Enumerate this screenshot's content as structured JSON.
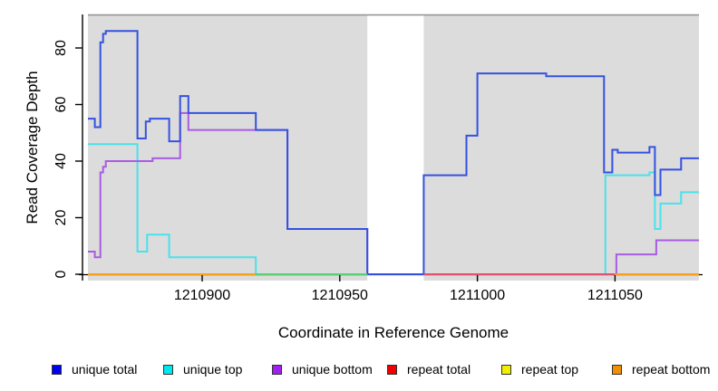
{
  "chart_data": {
    "type": "line",
    "subtype": "step-coverage-plot",
    "title": "",
    "xlabel": "Coordinate in Reference Genome",
    "ylabel": "Read Coverage Depth",
    "xlim": [
      1210858.5,
      1211080.5
    ],
    "ylim": [
      -2,
      92
    ],
    "x_ticks": [
      1210900,
      1210950,
      1211000,
      1211050
    ],
    "x_tick_labels": [
      "1210900",
      "1210950",
      "1211000",
      "1211050"
    ],
    "y_ticks": [
      0,
      20,
      40,
      60,
      80
    ],
    "y_tick_labels": [
      "0",
      "20",
      "40",
      "60",
      "80"
    ],
    "grid": false,
    "legend_position": "bottom",
    "background_regions": [
      {
        "from": 1210858.5,
        "to": 1210960.0,
        "color": "#dcdcdc"
      },
      {
        "from": 1210980.5,
        "to": 1211080.5,
        "color": "#dcdcdc"
      }
    ],
    "gap_region": {
      "from": 1210960.0,
      "to": 1210980.5,
      "color": "#ffffff"
    },
    "series": [
      {
        "name": "repeat top",
        "color": "#f2ee00",
        "steps": [
          [
            1210858.5,
            0
          ],
          [
            1211080.5,
            0
          ]
        ]
      },
      {
        "name": "repeat total",
        "color": "#ee0000",
        "steps": [
          [
            1210858.5,
            0
          ],
          [
            1211080.5,
            0
          ]
        ]
      },
      {
        "name": "repeat bottom",
        "color": "#f7a11c",
        "steps": [
          [
            1210858.5,
            0
          ],
          [
            1211080.5,
            0
          ]
        ]
      },
      {
        "name": "unique top",
        "color": "#49e2ec",
        "steps": [
          [
            1210858.5,
            46
          ],
          [
            1210876.5,
            8
          ],
          [
            1210880,
            14
          ],
          [
            1210888,
            6
          ],
          [
            1210919.5,
            0
          ],
          [
            1211046.5,
            35
          ],
          [
            1211062.5,
            36
          ],
          [
            1211064.5,
            16
          ],
          [
            1211066.5,
            25
          ],
          [
            1211074,
            29
          ],
          [
            1211080.5,
            29
          ]
        ]
      },
      {
        "name": "unique bottom",
        "color": "#a95ce3",
        "steps": [
          [
            1210858.5,
            8
          ],
          [
            1210861,
            6
          ],
          [
            1210863,
            36
          ],
          [
            1210864,
            38
          ],
          [
            1210865,
            40
          ],
          [
            1210882,
            41
          ],
          [
            1210892,
            57
          ],
          [
            1210895,
            51
          ],
          [
            1210931,
            16
          ],
          [
            1210960,
            0
          ],
          [
            1211050.5,
            7
          ],
          [
            1211065,
            12
          ],
          [
            1211080.5,
            12
          ]
        ]
      },
      {
        "name": "unique total",
        "color": "#3452e0",
        "steps": [
          [
            1210858.5,
            55
          ],
          [
            1210861,
            52
          ],
          [
            1210863,
            82
          ],
          [
            1210864,
            85
          ],
          [
            1210865,
            86
          ],
          [
            1210876.5,
            48
          ],
          [
            1210879.5,
            54
          ],
          [
            1210881,
            55
          ],
          [
            1210888,
            47
          ],
          [
            1210892,
            63
          ],
          [
            1210895,
            57
          ],
          [
            1210919.5,
            51
          ],
          [
            1210931,
            16
          ],
          [
            1210960,
            0
          ],
          [
            1210980.5,
            35
          ],
          [
            1210996,
            49
          ],
          [
            1211000,
            71
          ],
          [
            1211025,
            70
          ],
          [
            1211046,
            36
          ],
          [
            1211049,
            44
          ],
          [
            1211051,
            43
          ],
          [
            1211062.5,
            45
          ],
          [
            1211064.5,
            28
          ],
          [
            1211066.5,
            37
          ],
          [
            1211074,
            41
          ],
          [
            1211080.5,
            41
          ]
        ]
      }
    ],
    "zero_line_overlays": [
      {
        "from": 1210858.5,
        "to": 1210919.5,
        "color": "#f7a11c",
        "note": "repeat bottom visible at 0"
      },
      {
        "from": 1210919.5,
        "to": 1210960.0,
        "color": "#58d272",
        "note": "blended cyan/yellow at 0"
      },
      {
        "from": 1210980.5,
        "to": 1211050.0,
        "color": "#e0516d",
        "note": "repeat total visible at 0"
      },
      {
        "from": 1211050.0,
        "to": 1211080.5,
        "color": "#f7a11c",
        "note": "repeat bottom visible at 0"
      }
    ],
    "legend": [
      {
        "label": "unique total",
        "color": "#0000ee"
      },
      {
        "label": "unique top",
        "color": "#00e8ee"
      },
      {
        "label": "unique bottom",
        "color": "#a020f0"
      },
      {
        "label": "repeat total",
        "color": "#ee0000"
      },
      {
        "label": "repeat top",
        "color": "#f2ee00"
      },
      {
        "label": "repeat bottom",
        "color": "#f09000"
      }
    ],
    "axis_color": "#000000",
    "top_border_color": "#8f8f8f"
  }
}
